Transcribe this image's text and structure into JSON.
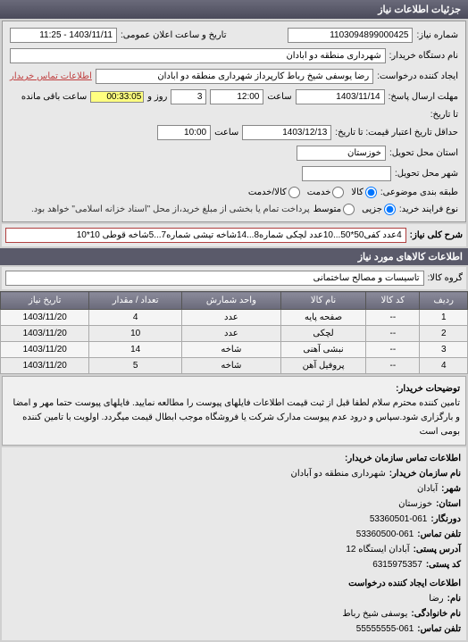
{
  "header": {
    "title": "جزئیات اطلاعات نیاز"
  },
  "fields": {
    "need_number_label": "شماره نیاز:",
    "need_number": "1103094899000425",
    "datetime_label": "تاریخ و ساعت اعلان عمومی:",
    "datetime": "1403/11/11 - 11:25",
    "buyer_org_label": "نام دستگاه خریدار:",
    "buyer_org": "شهرداری منطقه دو آبادان",
    "creator_label": "ایجاد کننده درخواست:",
    "creator": "رضا یوسفی شیخ رباط کارپرداز شهرداری منطقه دو آبادان",
    "contact_link": "اطلاعات تماس خریدار",
    "deadline_label": "مهلت ارسال پاسخ:",
    "deadline_date": "1403/11/14",
    "deadline_hour_label": "ساعت",
    "deadline_hour": "12:00",
    "day_label": "روز و",
    "days": "3",
    "remain_time": "00:33:05",
    "remain_label": "ساعت باقی مانده",
    "until_label": "تا تاریخ:",
    "validity_label": "حداقل تاریخ اعتبار قیمت: تا تاریخ:",
    "validity_date": "1403/12/13",
    "validity_hour": "10:00",
    "province_label": "استان محل تحویل:",
    "province": "خوزستان",
    "city_label": "شهر محل تحویل:",
    "category_label": "طبقه بندی موضوعی:",
    "purchase_type_label": "نوع فرایند خرید:",
    "purchase_note": "پرداخت تمام یا بخشی از مبلغ خرید،از محل \"اسناد خزانه اسلامی\" خواهد بود.",
    "goods": "کالا",
    "service": "خدمت",
    "both": "کالا/خدمت",
    "micro": "جزیی",
    "mid": "متوسط"
  },
  "need_title": {
    "label": "شرح کلی نیاز:",
    "value": "4عدد کفی50*50...10عدد لچکی شماره8...14شاخه تیشی شماره7...5شاخه قوطی 10*10"
  },
  "items_section": {
    "title": "اطلاعات کالاهای مورد نیاز",
    "group_label": "گروه کالا:",
    "group_value": "تاسیسات و مصالح ساختمانی"
  },
  "table": {
    "headers": {
      "row": "ردیف",
      "code": "کد کالا",
      "name": "نام کالا",
      "unit": "واحد شمارش",
      "qty": "تعداد / مقدار",
      "date": "تاریخ نیاز"
    },
    "rows": [
      {
        "n": "1",
        "code": "--",
        "name": "صفحه پایه",
        "unit": "عدد",
        "qty": "4",
        "date": "1403/11/20"
      },
      {
        "n": "2",
        "code": "--",
        "name": "لچکی",
        "unit": "عدد",
        "qty": "10",
        "date": "1403/11/20"
      },
      {
        "n": "3",
        "code": "--",
        "name": "نبشی آهنی",
        "unit": "شاخه",
        "qty": "14",
        "date": "1403/11/20"
      },
      {
        "n": "4",
        "code": "--",
        "name": "پروفیل آهن",
        "unit": "شاخه",
        "qty": "5",
        "date": "1403/11/20"
      }
    ]
  },
  "description": {
    "label": "توضیحات خریدار:",
    "text": "تامین کننده محترم سلام لطفا قبل از ثبت قیمت اطلاعات فایلهای پیوست را مطالعه نمایید. فایلهای پیوست حتما مهر و امضا و بارگزاری شود.سپاس و درود عدم پیوست مدارک شرکت یا فروشگاه موجب ابطال قیمت میگردد. اولویت با تامین کننده بومی است"
  },
  "contact": {
    "title": "اطلاعات تماس سازمان خریدار:",
    "org_label": "نام سازمان خریدار:",
    "org": "شهرداری منطقه دو آبادان",
    "city_label": "شهر:",
    "city": "آبادان",
    "province_label": "استان:",
    "province": "خوزستان",
    "fax_label": "دورنگار:",
    "fax": "53360501-061",
    "phone_label": "تلفن تماس:",
    "phone": "53360500-061",
    "address_label": "آدرس پستی:",
    "address": "آبادان ایستگاه 12",
    "postal_label": "کد پستی:",
    "postal": "6315975357",
    "creator_title": "اطلاعات ایجاد کننده درخواست",
    "name_label": "نام:",
    "name": "رضا",
    "surname_label": "نام خانوادگی:",
    "surname": "یوسفی شیخ رباط",
    "contact_phone_label": "تلفن تماس:",
    "contact_phone": "55555555-061"
  }
}
